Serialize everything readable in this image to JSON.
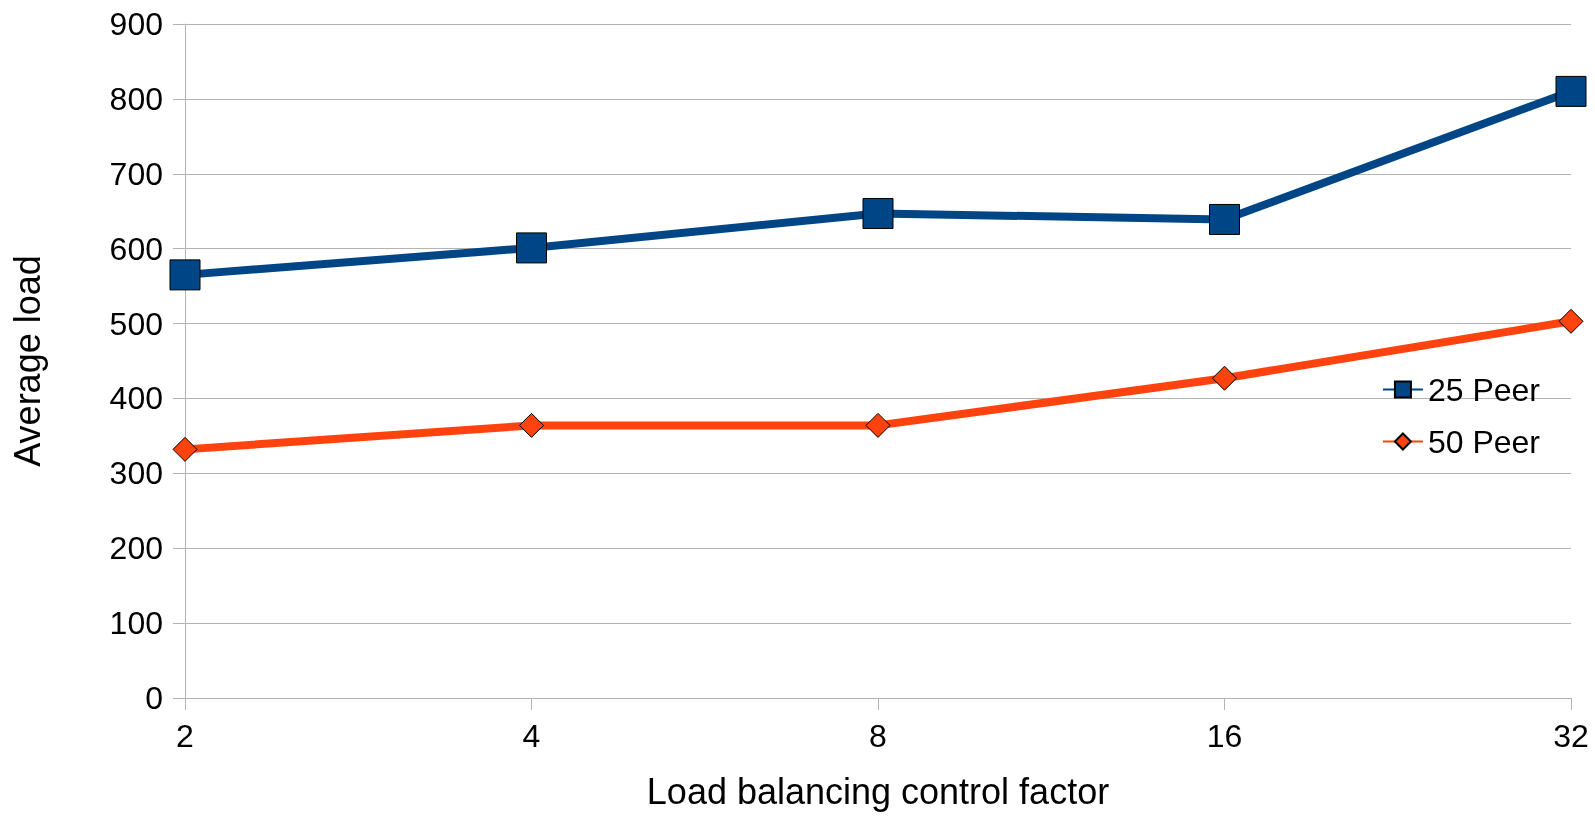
{
  "chart_data": {
    "type": "line",
    "xlabel": "Load balancing control factor",
    "ylabel": "Average load",
    "categories": [
      "2",
      "4",
      "8",
      "16",
      "32"
    ],
    "series": [
      {
        "name": "25 Peer",
        "color": "#004586",
        "marker": "square",
        "values": [
          565,
          601,
          647,
          639,
          810
        ]
      },
      {
        "name": "50 Peer",
        "color": "#ff420e",
        "marker": "diamond",
        "values": [
          332,
          364,
          364,
          427,
          503
        ]
      }
    ],
    "ylim": [
      0,
      900
    ],
    "yticks": [
      0,
      100,
      200,
      300,
      400,
      500,
      600,
      700,
      800,
      900
    ],
    "grid": "y",
    "legend": "right"
  }
}
